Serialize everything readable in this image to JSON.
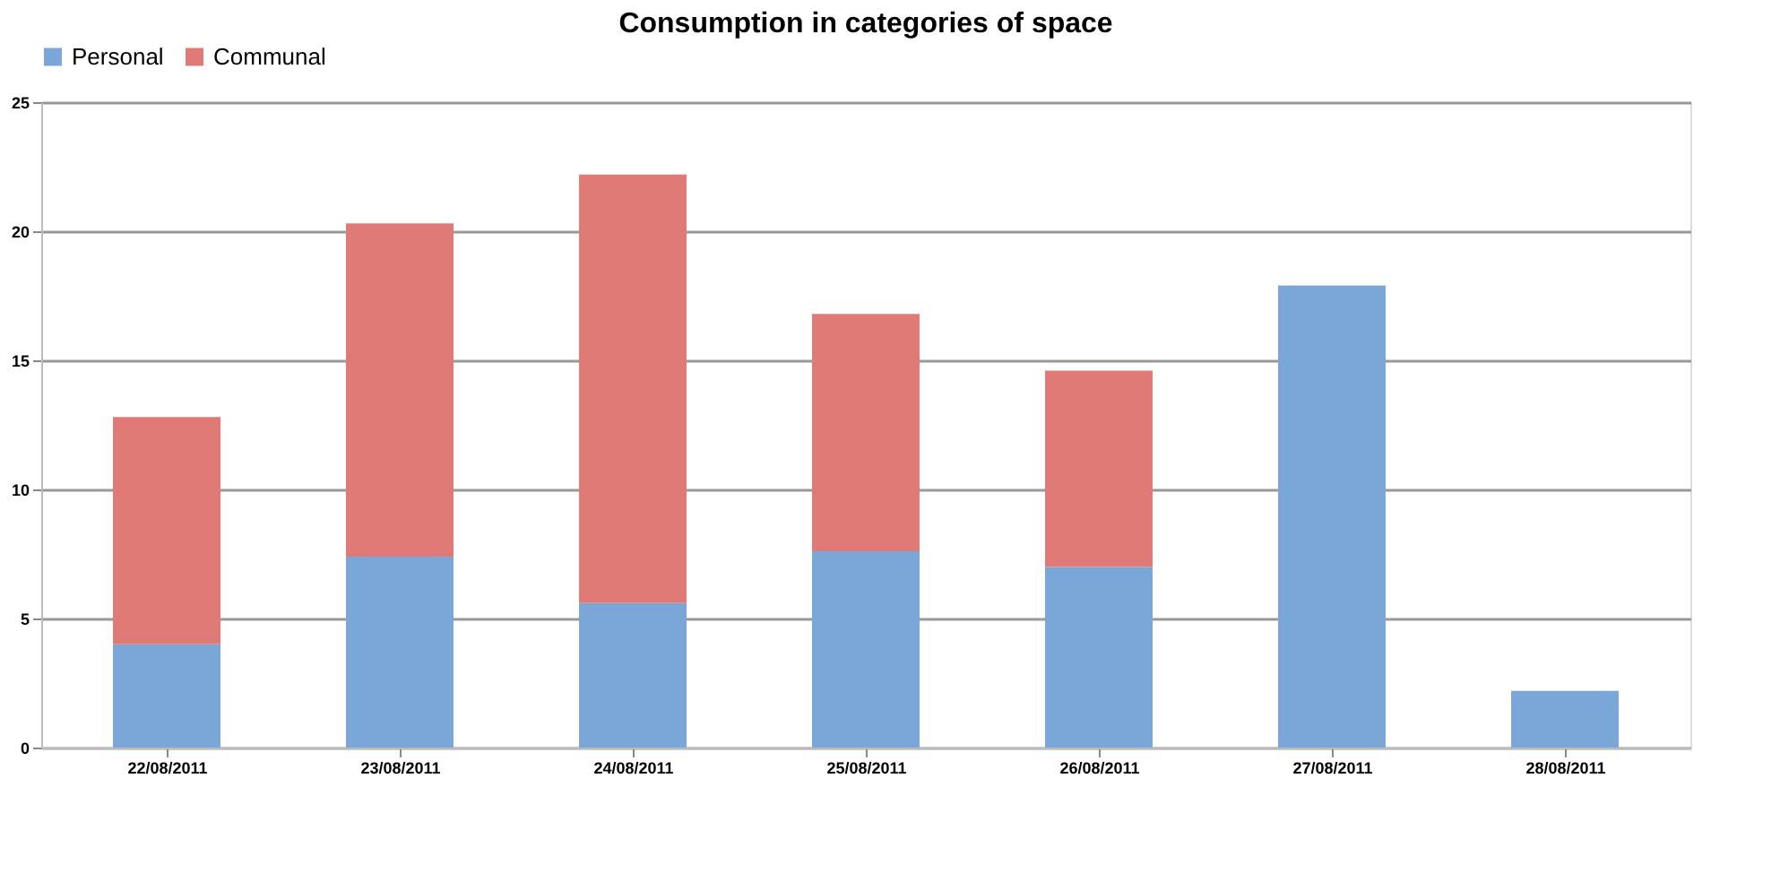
{
  "chart_data": {
    "type": "bar",
    "title": "Consumption in categories of space",
    "categories": [
      "22/08/2011",
      "23/08/2011",
      "24/08/2011",
      "25/08/2011",
      "26/08/2011",
      "27/08/2011",
      "28/08/2011"
    ],
    "series": [
      {
        "name": "Personal",
        "color": "#7aa6d8",
        "values": [
          4.0,
          7.4,
          5.6,
          7.6,
          7.0,
          17.9,
          2.2
        ]
      },
      {
        "name": "Communal",
        "color": "#e07a76",
        "values": [
          8.8,
          12.9,
          16.6,
          9.2,
          7.6,
          null,
          null
        ]
      }
    ],
    "stacked": true,
    "ylim": [
      0,
      25
    ],
    "yticks": [
      0,
      5,
      10,
      15,
      20,
      25
    ],
    "grid": "y",
    "legend": "top"
  }
}
